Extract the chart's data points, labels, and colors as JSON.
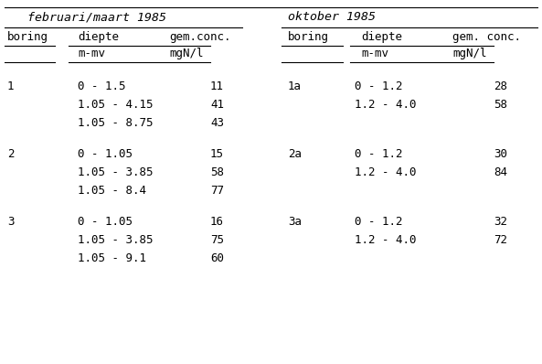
{
  "left_header": "februari/maart 1985",
  "right_header": "oktober 1985",
  "col_headers_left": [
    "boring",
    "diepte",
    "gem.conc."
  ],
  "col_headers_right": [
    "boring",
    "diepte",
    "gem. conc."
  ],
  "col_subheaders_left": [
    "",
    "m-mv",
    "mgN/l"
  ],
  "col_subheaders_right": [
    "",
    "m-mv",
    "mgN/l"
  ],
  "left_data": [
    [
      "1",
      "0 - 1.5",
      "11"
    ],
    [
      "",
      "1.05 - 4.15",
      "41"
    ],
    [
      "",
      "1.05 - 8.75",
      "43"
    ],
    [
      "2",
      "0 - 1.05",
      "15"
    ],
    [
      "",
      "1.05 - 3.85",
      "58"
    ],
    [
      "",
      "1.05 - 8.4",
      "77"
    ],
    [
      "3",
      "0 - 1.05",
      "16"
    ],
    [
      "",
      "1.05 - 3.85",
      "75"
    ],
    [
      "",
      "1.05 - 9.1",
      "60"
    ]
  ],
  "right_data": [
    [
      "1a",
      "0 - 1.2",
      "28"
    ],
    [
      "",
      "1.2 - 4.0",
      "58"
    ],
    [
      "2a",
      "0 - 1.2",
      "30"
    ],
    [
      "",
      "1.2 - 4.0",
      "84"
    ],
    [
      "3a",
      "0 - 1.2",
      "32"
    ],
    [
      "",
      "1.2 - 4.0",
      "72"
    ]
  ],
  "bg_color": "#ffffff",
  "text_color": "#000000",
  "font_size": 9.0,
  "header_font_size": 9.5
}
